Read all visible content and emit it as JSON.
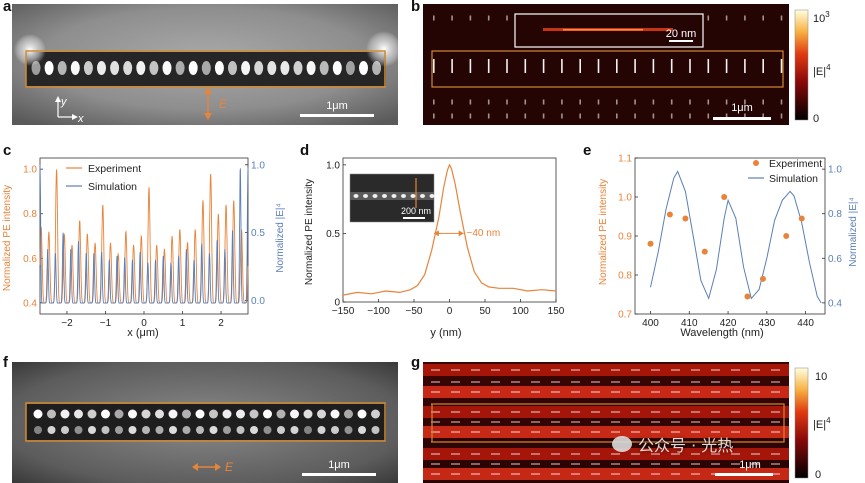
{
  "figure": {
    "panels": {
      "a": {
        "label": "a",
        "scale_bar": "1μm",
        "axis_y": "y",
        "axis_x": "x",
        "pol_label": "E"
      },
      "b": {
        "label": "b",
        "inset_scale": "20 nm",
        "scale_bar": "1μm",
        "colorbar_max": "10",
        "colorbar_max_exp": "3",
        "colorbar_min": "0",
        "colorbar_label": "|E|",
        "colorbar_label_exp": "4"
      },
      "c": {
        "label": "c"
      },
      "d": {
        "label": "d",
        "inset_scale": "200 nm",
        "width_annotation": "~40 nm"
      },
      "e": {
        "label": "e"
      },
      "f": {
        "label": "f",
        "scale_bar": "1μm",
        "pol_label": "E"
      },
      "g": {
        "label": "g",
        "scale_bar": "1μm",
        "colorbar_max": "10",
        "colorbar_min": "0",
        "colorbar_label": "|E|",
        "colorbar_label_exp": "4"
      }
    },
    "watermark": "公众号 · 光热"
  },
  "colors": {
    "orange": "#e8833a",
    "blue": "#5a7fb8",
    "frame": "#d08a30"
  },
  "chart_data": [
    {
      "id": "c",
      "type": "line",
      "xlabel": "x (μm)",
      "ylabel_left": "Normalized PE intensity",
      "ylabel_right": "Normalized |E|⁴",
      "xlim": [
        -2.7,
        2.7
      ],
      "ylim_left": [
        0.35,
        1.05
      ],
      "ylim_right": [
        -0.1,
        1.05
      ],
      "xticks": [
        -2,
        -1,
        0,
        1,
        2
      ],
      "yticks_left": [
        0.4,
        0.6,
        0.8,
        1.0
      ],
      "yticks_right": [
        0.0,
        0.5,
        1.0
      ],
      "legend": [
        "Experiment",
        "Simulation"
      ],
      "series": [
        {
          "name": "Experiment",
          "axis": "left",
          "period": 0.2,
          "phase": 0.03,
          "peaks": [
            0.74,
            0.72,
            1.0,
            0.71,
            0.66,
            0.77,
            0.71,
            0.67,
            0.84,
            0.67,
            0.62,
            0.72,
            0.66,
            0.7,
            0.92,
            0.66,
            0.64,
            0.7,
            0.73,
            0.67,
            0.73,
            0.86,
            0.98,
            0.8,
            0.84,
            0.86,
            0.73
          ],
          "baseline": 0.4
        },
        {
          "name": "Simulation",
          "axis": "right",
          "period": 0.2,
          "phase": 0.0,
          "peaks": [
            1.0,
            0.38,
            0.35,
            0.5,
            0.38,
            0.44,
            0.35,
            0.35,
            0.36,
            0.3,
            0.33,
            0.32,
            0.3,
            0.36,
            0.28,
            0.3,
            0.33,
            0.28,
            0.33,
            0.38,
            0.3,
            0.42,
            0.35,
            0.45,
            0.38,
            0.52,
            0.98
          ],
          "baseline": -0.02
        }
      ]
    },
    {
      "id": "d",
      "type": "line",
      "xlabel": "y (nm)",
      "ylabel": "Normalized PE intensity",
      "xlim": [
        -150,
        150
      ],
      "ylim": [
        0,
        1.05
      ],
      "xticks": [
        -150,
        -100,
        -50,
        0,
        50,
        100,
        150
      ],
      "yticks": [
        0,
        0.5,
        1.0
      ],
      "x": [
        -150,
        -130,
        -110,
        -90,
        -70,
        -55,
        -45,
        -35,
        -25,
        -15,
        -8,
        -3,
        0,
        3,
        8,
        15,
        25,
        35,
        45,
        55,
        70,
        90,
        110,
        130,
        150
      ],
      "y": [
        0.05,
        0.07,
        0.06,
        0.08,
        0.07,
        0.09,
        0.12,
        0.2,
        0.38,
        0.62,
        0.84,
        0.96,
        1.0,
        0.97,
        0.86,
        0.66,
        0.4,
        0.22,
        0.14,
        0.11,
        0.1,
        0.1,
        0.08,
        0.09,
        0.08
      ]
    },
    {
      "id": "e",
      "type": "scatter+line",
      "xlabel": "Wavelength (nm)",
      "ylabel_left": "Normalized PE intensity",
      "ylabel_right": "Normalized |E|⁴",
      "xlim": [
        396,
        445
      ],
      "ylim_left": [
        0.7,
        1.1
      ],
      "ylim_right": [
        0.35,
        1.05
      ],
      "xticks": [
        400,
        410,
        420,
        430,
        440
      ],
      "yticks_left": [
        0.7,
        0.8,
        0.9,
        1.0,
        1.1
      ],
      "yticks_right": [
        0.4,
        0.6,
        0.8,
        1.0
      ],
      "legend": [
        "Experiment",
        "Simulation"
      ],
      "experiment": {
        "x": [
          400,
          405,
          409,
          414,
          419,
          425,
          429,
          435,
          439
        ],
        "y": [
          0.88,
          0.955,
          0.945,
          0.86,
          1.0,
          0.745,
          0.79,
          0.9,
          0.945
        ]
      },
      "simulation": {
        "x": [
          400,
          402,
          404,
          406,
          407,
          409,
          411,
          413,
          415,
          417,
          419,
          420,
          422,
          424,
          426,
          428,
          430,
          432,
          434,
          436,
          437,
          439,
          441,
          443,
          444
        ],
        "y": [
          0.47,
          0.63,
          0.82,
          0.96,
          0.99,
          0.9,
          0.7,
          0.5,
          0.42,
          0.55,
          0.78,
          0.86,
          0.78,
          0.56,
          0.42,
          0.46,
          0.6,
          0.77,
          0.86,
          0.9,
          0.88,
          0.76,
          0.58,
          0.43,
          0.4
        ]
      }
    }
  ]
}
